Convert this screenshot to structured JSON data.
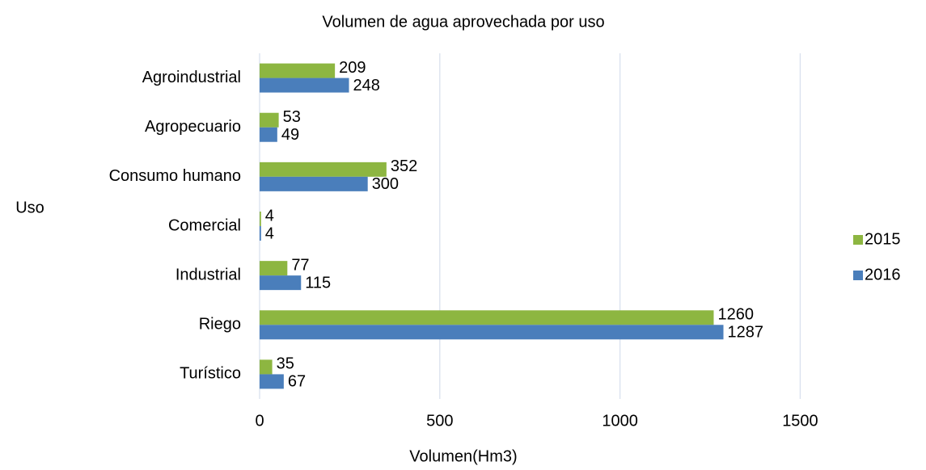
{
  "chart_data": {
    "type": "bar",
    "orientation": "horizontal",
    "title": "Volumen de agua aprovechada por uso",
    "x_label": "Volumen(Hm3)",
    "y_label": "Uso",
    "categories": [
      "Agroindustrial",
      "Agropecuario",
      "Consumo humano",
      "Comercial",
      "Industrial",
      "Riego",
      "Turístico"
    ],
    "series": [
      {
        "name": "2015",
        "color": "#8db641",
        "values": [
          209,
          53,
          352,
          4,
          77,
          1260,
          35
        ]
      },
      {
        "name": "2016",
        "color": "#4a7ebb",
        "values": [
          248,
          49,
          300,
          4,
          115,
          1287,
          67
        ]
      }
    ],
    "xlim": [
      0,
      1600
    ],
    "xticks": [
      0,
      500,
      1000,
      1500
    ],
    "grid": true,
    "legend": "right"
  }
}
